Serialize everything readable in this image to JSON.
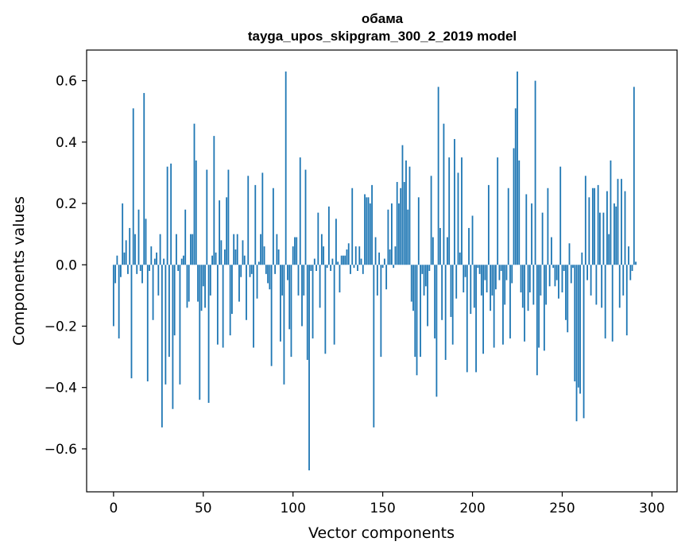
{
  "chart_data": {
    "type": "bar",
    "title": "обама",
    "subtitle": "tayga_upos_skipgram_300_2_2019 model",
    "xlabel": "Vector components",
    "ylabel": "Components values",
    "xlim": [
      -15,
      314
    ],
    "ylim": [
      -0.74,
      0.7
    ],
    "xticks": [
      0,
      50,
      100,
      150,
      200,
      250,
      300
    ],
    "xtick_labels": [
      "0",
      "50",
      "100",
      "150",
      "200",
      "250",
      "300"
    ],
    "yticks": [
      -0.6,
      -0.4,
      -0.2,
      0.0,
      0.2,
      0.4,
      0.6
    ],
    "ytick_labels": [
      "−0.6",
      "−0.4",
      "−0.2",
      "0.0",
      "0.2",
      "0.4",
      "0.6"
    ],
    "grid": false,
    "bar_color": "#1f77b4",
    "values": [
      -0.2,
      -0.06,
      0.03,
      -0.24,
      -0.04,
      0.2,
      0.04,
      0.08,
      -0.03,
      0.12,
      -0.37,
      0.51,
      0.1,
      -0.03,
      0.18,
      -0.02,
      -0.06,
      0.56,
      0.15,
      -0.38,
      -0.02,
      0.06,
      -0.18,
      0.02,
      0.04,
      -0.1,
      0.1,
      -0.53,
      0.02,
      -0.39,
      0.32,
      -0.3,
      0.33,
      -0.47,
      -0.23,
      0.1,
      -0.02,
      -0.39,
      0.02,
      0.03,
      0.18,
      -0.14,
      -0.12,
      0.1,
      0.1,
      0.46,
      0.34,
      -0.12,
      -0.44,
      -0.15,
      -0.07,
      -0.14,
      0.31,
      -0.45,
      -0.1,
      0.03,
      0.42,
      0.04,
      -0.26,
      0.21,
      0.08,
      -0.27,
      0.05,
      0.22,
      0.31,
      -0.23,
      -0.16,
      0.1,
      0.05,
      0.1,
      -0.12,
      -0.04,
      0.08,
      0.03,
      -0.18,
      0.29,
      -0.04,
      -0.03,
      -0.27,
      0.26,
      -0.11,
      0.01,
      0.1,
      0.3,
      0.06,
      -0.03,
      -0.06,
      -0.08,
      -0.33,
      0.25,
      -0.03,
      0.1,
      0.05,
      -0.25,
      -0.1,
      -0.39,
      0.63,
      -0.05,
      -0.21,
      -0.3,
      0.06,
      0.09,
      0.09,
      -0.1,
      0.35,
      -0.2,
      -0.1,
      0.31,
      -0.31,
      -0.67,
      -0.02,
      -0.24,
      0.02,
      -0.02,
      0.17,
      -0.14,
      0.1,
      0.06,
      -0.29,
      -0.01,
      0.19,
      -0.02,
      0.02,
      -0.26,
      0.15,
      0.01,
      -0.09,
      0.03,
      0.03,
      0.03,
      0.05,
      0.07,
      -0.03,
      0.25,
      -0.01,
      0.06,
      -0.02,
      0.06,
      0.02,
      -0.03,
      0.23,
      0.22,
      0.22,
      0.2,
      0.26,
      -0.53,
      0.09,
      -0.1,
      0.04,
      -0.3,
      -0.01,
      0.02,
      -0.08,
      0.18,
      0.05,
      0.2,
      -0.01,
      0.06,
      0.27,
      0.2,
      0.25,
      0.39,
      0.27,
      0.34,
      0.18,
      0.32,
      -0.12,
      -0.15,
      -0.3,
      -0.36,
      0.22,
      -0.3,
      -0.03,
      -0.1,
      -0.07,
      -0.2,
      -0.02,
      0.29,
      0.09,
      -0.24,
      -0.43,
      0.58,
      0.12,
      -0.18,
      0.46,
      -0.31,
      0.09,
      0.35,
      -0.17,
      -0.26,
      0.41,
      -0.11,
      0.3,
      0.04,
      0.35,
      -0.09,
      -0.04,
      -0.35,
      0.12,
      -0.16,
      0.16,
      -0.14,
      -0.35,
      -0.01,
      -0.03,
      -0.1,
      -0.29,
      -0.05,
      -0.09,
      0.26,
      -0.15,
      -0.1,
      -0.27,
      -0.08,
      0.35,
      -0.05,
      -0.02,
      -0.26,
      -0.13,
      -0.05,
      0.25,
      -0.24,
      -0.06,
      0.38,
      0.51,
      0.63,
      0.34,
      -0.09,
      -0.14,
      -0.25,
      0.23,
      -0.15,
      -0.09,
      0.2,
      -0.13,
      0.6,
      -0.36,
      -0.27,
      -0.1,
      0.17,
      -0.28,
      -0.13,
      0.25,
      -0.07,
      0.09,
      -0.01,
      -0.07,
      -0.05,
      -0.11,
      0.32,
      -0.09,
      -0.02,
      -0.18,
      -0.22,
      0.07,
      -0.06,
      -0.01,
      -0.38,
      -0.51,
      -0.4,
      -0.42,
      0.04,
      -0.5,
      0.29,
      -0.05,
      0.22,
      -0.1,
      0.25,
      0.25,
      -0.13,
      0.26,
      0.17,
      -0.14,
      0.17,
      -0.24,
      0.24,
      0.1,
      0.34,
      -0.25,
      0.2,
      0.19,
      0.28,
      -0.14,
      0.28,
      -0.1,
      0.24,
      -0.23,
      0.06,
      -0.05,
      -0.02,
      0.58,
      0.01
    ]
  }
}
